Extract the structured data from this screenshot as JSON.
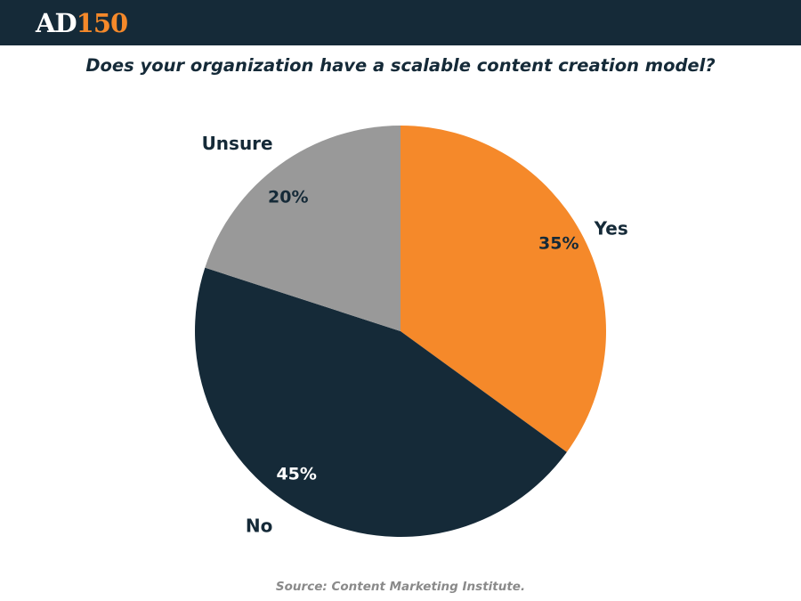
{
  "header": {
    "logo_part1": "AD",
    "logo_part2": "150"
  },
  "colors": {
    "header_bg": "#152a38",
    "accent": "#f5892a",
    "yes": "#f5892a",
    "no": "#152a38",
    "unsure": "#999999"
  },
  "chart_data": {
    "type": "pie",
    "title": "Does your organization have a scalable content creation model?",
    "slices": [
      {
        "label": "Yes",
        "value": 35,
        "value_label": "35%",
        "color": "#f5892a"
      },
      {
        "label": "No",
        "value": 45,
        "value_label": "45%",
        "color": "#152a38"
      },
      {
        "label": "Unsure",
        "value": 20,
        "value_label": "20%",
        "color": "#999999"
      }
    ]
  },
  "footer": {
    "source": "Source: Content Marketing Institute."
  }
}
